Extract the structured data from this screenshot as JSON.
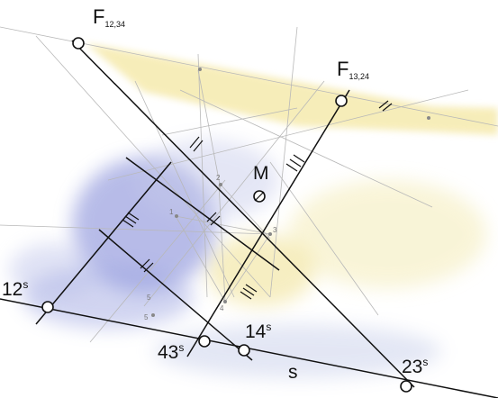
{
  "labels": {
    "f1": {
      "main": "F",
      "sub": "12,34"
    },
    "f2": {
      "main": "F",
      "sub": "13,24"
    },
    "m": {
      "main": "M"
    },
    "p12": {
      "main": "12",
      "sup": "s"
    },
    "p14": {
      "main": "14",
      "sup": "s"
    },
    "p43": {
      "main": "43",
      "sup": "s"
    },
    "p23": {
      "main": "23",
      "sup": "s"
    },
    "s": {
      "main": "s"
    },
    "pts": [
      "1",
      "2",
      "3",
      "4",
      "5",
      "5"
    ]
  },
  "colors": {
    "ink": "#111111",
    "pencil": "#b9b9b9",
    "wash_yellow": "#f3e59a",
    "wash_blue": "#6f78cf"
  }
}
